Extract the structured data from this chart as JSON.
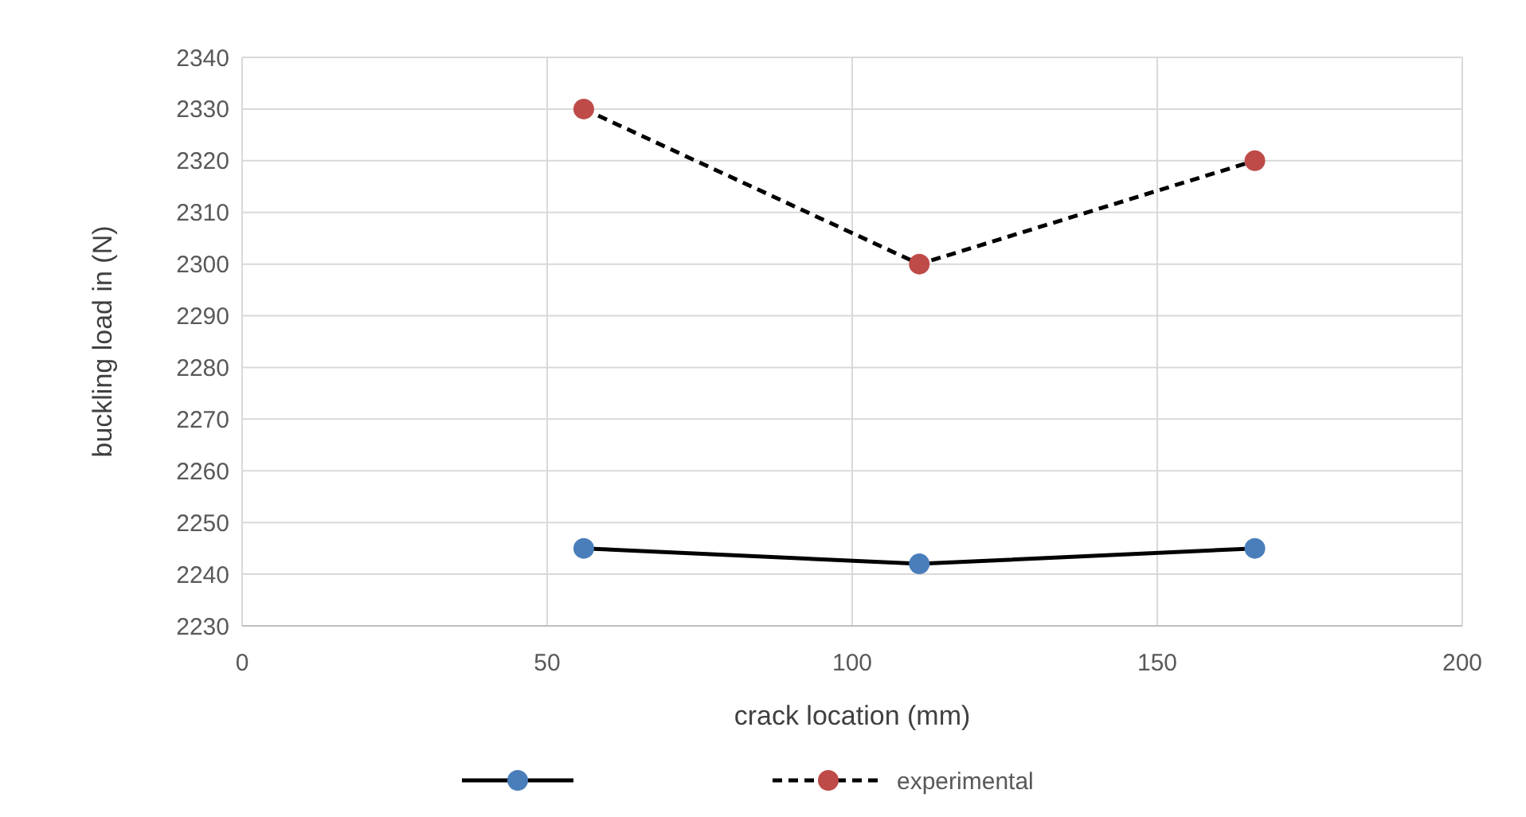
{
  "chart_data": {
    "type": "line",
    "xlabel": "crack location (mm)",
    "ylabel": "buckling load in (N)",
    "x": [
      56,
      111,
      166
    ],
    "series": [
      {
        "color": "#4a7ebb",
        "values": [
          2245,
          2242,
          2245
        ],
        "line_style": "solid"
      },
      {
        "name": "experimental",
        "color": "#be4b48",
        "values": [
          2330,
          2300,
          2320
        ],
        "line_style": "dashed"
      }
    ],
    "xlim": [
      0,
      200
    ],
    "xticks": [
      0,
      50,
      100,
      150,
      200
    ],
    "ylim": [
      2230,
      2340
    ],
    "yticks": [
      2230,
      2240,
      2250,
      2260,
      2270,
      2280,
      2290,
      2300,
      2310,
      2320,
      2330,
      2340
    ],
    "grid": true,
    "legend": "bottom",
    "marker": "circle"
  }
}
